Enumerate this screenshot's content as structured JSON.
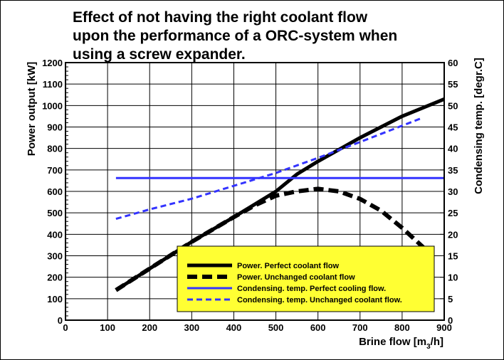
{
  "chart_data": {
    "type": "line",
    "title_lines": [
      "Effect of not having the right coolant flow",
      "upon the performance of a ORC-system when",
      "using a screw expander."
    ],
    "xlabel": "Brine flow [m",
    "xlabel_sub": "3",
    "xlabel_end": "/h]",
    "ylabel_left": "Power output [kW]",
    "ylabel_right": "Condensing temp. [degr.C]",
    "xlim": [
      0,
      900
    ],
    "ylim_left": [
      0,
      1200
    ],
    "ylim_right": [
      0,
      60
    ],
    "x_ticks": [
      "0",
      "100",
      "200",
      "300",
      "400",
      "500",
      "600",
      "700",
      "800",
      "900"
    ],
    "y_left_ticks": [
      "0",
      "100",
      "200",
      "300",
      "400",
      "500",
      "600",
      "700",
      "800",
      "900",
      "1000",
      "1100",
      "1200"
    ],
    "y_right_ticks": [
      "0",
      "5",
      "10",
      "15",
      "20",
      "25",
      "30",
      "35",
      "40",
      "45",
      "50",
      "55",
      "60"
    ],
    "grid": true,
    "legend_position": "lower-right",
    "legend_background": "#ffff33",
    "series": [
      {
        "name": "Power. Perfect coolant flow",
        "axis": "left",
        "color": "#000000",
        "style": "solid-thick",
        "x": [
          120,
          200,
          300,
          400,
          500,
          550,
          600,
          700,
          800,
          900
        ],
        "y": [
          140,
          240,
          365,
          480,
          600,
          680,
          740,
          850,
          950,
          1030
        ]
      },
      {
        "name": "Power. Unchanged coolant flow",
        "axis": "left",
        "color": "#000000",
        "style": "dashed-thick",
        "x": [
          120,
          200,
          300,
          400,
          450,
          500,
          550,
          600,
          650,
          700,
          750,
          800,
          850
        ],
        "y": [
          140,
          240,
          365,
          480,
          535,
          580,
          600,
          612,
          600,
          565,
          510,
          430,
          340
        ]
      },
      {
        "name": "Condensing. temp. Perfect cooling flow.",
        "axis": "right",
        "color": "#3333ff",
        "style": "solid",
        "x": [
          120,
          900
        ],
        "y": [
          33.1,
          33.1
        ]
      },
      {
        "name": "Condensing. temp. Unchanged coolant flow.",
        "axis": "right",
        "color": "#3333ff",
        "style": "dashed",
        "x": [
          120,
          200,
          300,
          400,
          500,
          600,
          700,
          800,
          850
        ],
        "y": [
          23.6,
          25.8,
          28.3,
          31.3,
          34.3,
          37.8,
          41.5,
          45.3,
          47.2
        ]
      }
    ]
  }
}
